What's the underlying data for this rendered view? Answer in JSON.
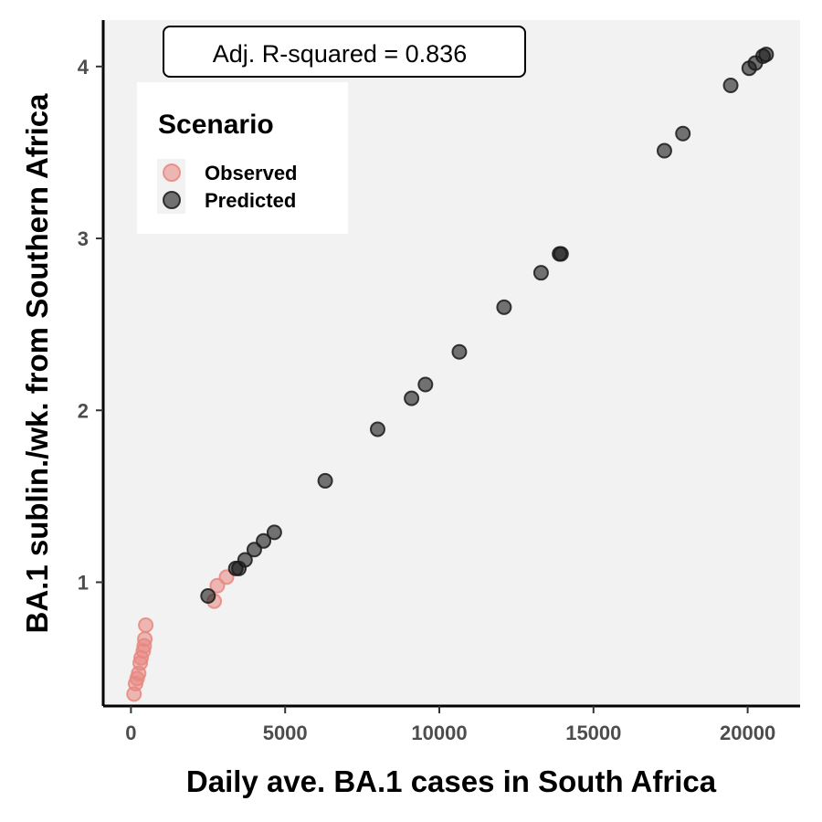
{
  "chart_data": {
    "type": "scatter",
    "title": "",
    "xlabel": "Daily ave. BA.1 cases in South Africa",
    "ylabel": "BA.1 sublin./wk. from Southern Africa",
    "xlim": [
      -900,
      21700
    ],
    "ylim": [
      0.28,
      4.27
    ],
    "xticks": [
      0,
      5000,
      10000,
      15000,
      20000
    ],
    "yticks": [
      1,
      2,
      3,
      4
    ],
    "grid": false,
    "annotation": "Adj. R-squared = 0.836",
    "legend": {
      "title": "Scenario",
      "position": "top-left",
      "entries": [
        "Observed",
        "Predicted"
      ]
    },
    "colors": {
      "Observed": "#e8877f",
      "Predicted": "#1a1a1a",
      "panel": "#f2f2f2"
    },
    "series": [
      {
        "name": "Observed",
        "points": [
          [
            100,
            0.35
          ],
          [
            150,
            0.41
          ],
          [
            200,
            0.44
          ],
          [
            250,
            0.47
          ],
          [
            300,
            0.53
          ],
          [
            330,
            0.56
          ],
          [
            400,
            0.6
          ],
          [
            430,
            0.63
          ],
          [
            450,
            0.67
          ],
          [
            480,
            0.75
          ],
          [
            2700,
            0.89
          ],
          [
            2800,
            0.98
          ],
          [
            3100,
            1.03
          ]
        ]
      },
      {
        "name": "Predicted",
        "points": [
          [
            2500,
            0.92
          ],
          [
            3400,
            1.08
          ],
          [
            3500,
            1.08
          ],
          [
            3700,
            1.13
          ],
          [
            4000,
            1.19
          ],
          [
            4300,
            1.24
          ],
          [
            4650,
            1.29
          ],
          [
            6300,
            1.59
          ],
          [
            8000,
            1.89
          ],
          [
            9100,
            2.07
          ],
          [
            9550,
            2.15
          ],
          [
            10650,
            2.34
          ],
          [
            12100,
            2.6
          ],
          [
            13300,
            2.8
          ],
          [
            13900,
            2.91
          ],
          [
            13950,
            2.91
          ],
          [
            17300,
            3.51
          ],
          [
            17900,
            3.61
          ],
          [
            19450,
            3.89
          ],
          [
            20050,
            3.99
          ],
          [
            20250,
            4.02
          ],
          [
            20500,
            4.06
          ],
          [
            20600,
            4.07
          ]
        ]
      }
    ]
  }
}
